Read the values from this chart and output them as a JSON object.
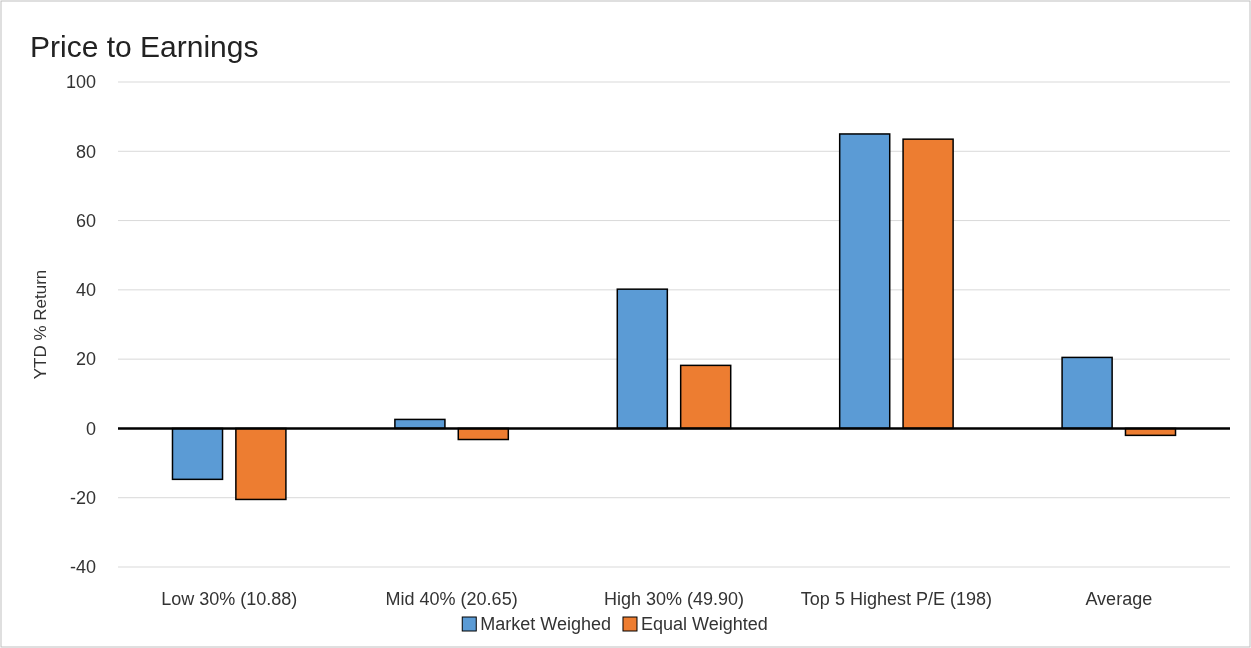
{
  "chart_data": {
    "type": "bar",
    "title": "Price to Earnings",
    "ylabel": "YTD % Return",
    "categories": [
      "Low 30% (10.88)",
      "Mid 40% (20.65)",
      "High 30% (49.90)",
      "Top 5 Highest P/E (198)",
      "Average"
    ],
    "series": [
      {
        "name": "Market Weighed",
        "color": "#5b9bd5",
        "values": [
          -14.7,
          2.6,
          40.2,
          85,
          20.5
        ]
      },
      {
        "name": "Equal Weighted",
        "color": "#ed7d31",
        "values": [
          -20.5,
          -3.2,
          18.2,
          83.5,
          -2.0
        ]
      }
    ],
    "ylim": [
      -40,
      100
    ],
    "yticks": [
      -40,
      -20,
      0,
      20,
      40,
      60,
      80,
      100
    ],
    "grid": "y",
    "legend": "bottom"
  }
}
